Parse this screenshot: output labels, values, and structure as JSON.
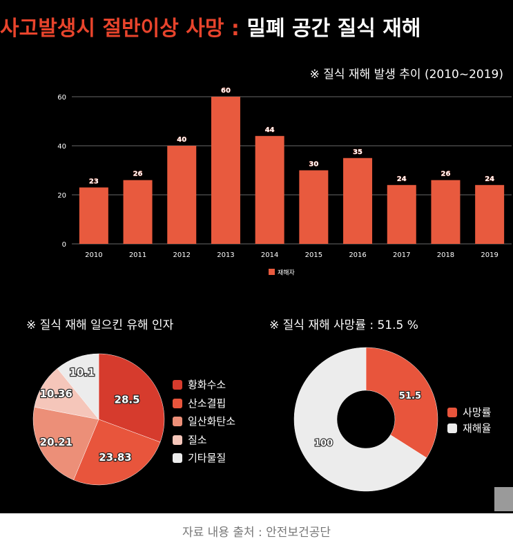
{
  "headline": {
    "red_part": "사고발생시  절반이상 사망 : ",
    "white_part": "밀폐 공간 질식 재해"
  },
  "colors": {
    "accent_red": "#e8442c",
    "bar_color": "#e85a3e"
  },
  "chart_data": [
    {
      "type": "bar",
      "title": "※ 질식 재해 발생 추이  (2010~2019)",
      "categories": [
        "2010",
        "2011",
        "2012",
        "2013",
        "2014",
        "2015",
        "2016",
        "2017",
        "2018",
        "2019"
      ],
      "series": [
        {
          "name": "재해자",
          "values": [
            23,
            26,
            40,
            60,
            44,
            30,
            35,
            24,
            26,
            24
          ],
          "color": "#e85a3e"
        }
      ],
      "yticks": [
        "0",
        "20",
        "40",
        "60"
      ],
      "ylim": [
        0,
        60
      ],
      "grid": true,
      "legend": "bottom"
    },
    {
      "type": "pie",
      "title": "※ 질식 재해 일으킨 유해 인자",
      "labels": [
        "황화수소",
        "산소결핍",
        "일산화탄소",
        "질소",
        "기타물질"
      ],
      "values": [
        28.5,
        23.83,
        20.21,
        10.36,
        10.1
      ],
      "value_labels": [
        "28.5",
        "23.83",
        "20.21",
        "10.36",
        "10.1"
      ],
      "colors": [
        "#d63b2d",
        "#e8553c",
        "#ec8f78",
        "#f5c6ba",
        "#ececec"
      ],
      "legend": "right"
    },
    {
      "type": "pie",
      "title": "※ 질식 재해 사망률 : 51.5 %",
      "labels": [
        "사망률",
        "재해율"
      ],
      "values": [
        51.5,
        100
      ],
      "value_labels": [
        "51.5",
        "100"
      ],
      "colors": [
        "#e8553c",
        "#ececec"
      ],
      "legend": "right"
    }
  ],
  "source": "자료 내용 출처 : 안전보건공단"
}
